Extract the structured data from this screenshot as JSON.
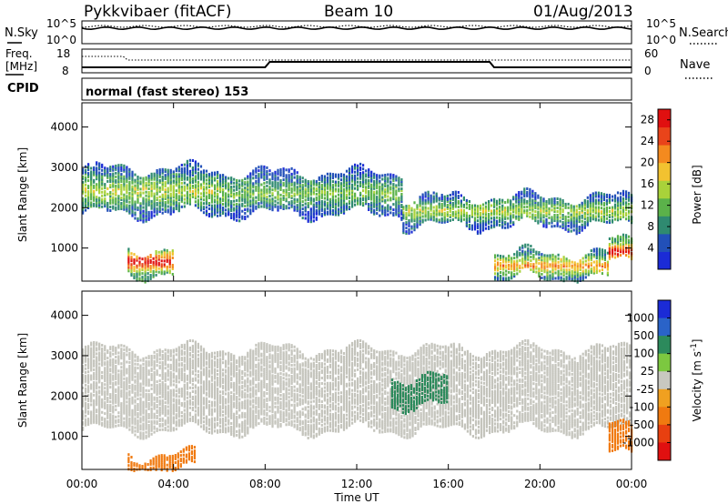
{
  "header": {
    "station": "Pykkvibaer (fitACF)",
    "beam": "Beam 10",
    "date": "01/Aug/2013"
  },
  "strip_nsky": {
    "label": "N.Sky",
    "ticks": [
      "10^5",
      "10^0"
    ],
    "right_label": "N.Search",
    "right_ticks": [
      "10^5",
      "10^0"
    ]
  },
  "strip_freq": {
    "label": "Freq.",
    "unit": "[MHz]",
    "ticks": [
      "18",
      "8"
    ],
    "right_label": "Nave",
    "right_ticks": [
      "60",
      "0"
    ]
  },
  "cpid": {
    "label": "CPID",
    "value": "normal (fast stereo) 153"
  },
  "time_axis": {
    "ticks": [
      "00:00",
      "04:00",
      "08:00",
      "12:00",
      "16:00",
      "20:00",
      "00:00"
    ],
    "label": "Time UT"
  },
  "colors": {
    "power_scale": [
      "#1b2bd6",
      "#2250b8",
      "#2f8a70",
      "#5bb24a",
      "#a9d23a",
      "#f2c230",
      "#f48a1f",
      "#e9441a",
      "#e01010"
    ],
    "velocity_scale": [
      "#1b2bd6",
      "#2a63c8",
      "#2c8a5c",
      "#7cc840",
      "#c8c8c0",
      "#f0a020",
      "#f07a10",
      "#e84010",
      "#e01010"
    ],
    "ground_scatter": "#c4c4bc"
  },
  "chart_data": [
    {
      "type": "heatmap",
      "name": "power",
      "xlabel": "Time UT",
      "ylabel": "Slant Range [km]",
      "x_ticks": [
        "00:00",
        "04:00",
        "08:00",
        "12:00",
        "16:00",
        "20:00",
        "00:00"
      ],
      "xlim_hours": [
        0,
        24
      ],
      "ylim": [
        180,
        4600
      ],
      "y_ticks": [
        1000,
        2000,
        3000,
        4000
      ],
      "colorbar_label": "Power [dB]",
      "colorbar_ticks": [
        4,
        8,
        12,
        16,
        20,
        24,
        28
      ],
      "colorbar_range": [
        0,
        30
      ],
      "features": [
        {
          "t_start": 0,
          "t_end": 6,
          "range_km": [
            1900,
            3000
          ],
          "value_db": 14
        },
        {
          "t_start": 6,
          "t_end": 14,
          "range_km": [
            1900,
            2900
          ],
          "value_db": 12
        },
        {
          "t_start": 14,
          "t_end": 24,
          "range_km": [
            1600,
            2300
          ],
          "value_db": 14
        },
        {
          "t_start": 2,
          "t_end": 4,
          "range_km": [
            400,
            1000
          ],
          "value_db": 28
        },
        {
          "t_start": 18,
          "t_end": 23,
          "range_km": [
            300,
            900
          ],
          "value_db": 20
        },
        {
          "t_start": 23,
          "t_end": 24,
          "range_km": [
            700,
            1200
          ],
          "value_db": 28
        }
      ]
    },
    {
      "type": "heatmap",
      "name": "velocity",
      "xlabel": "Time UT",
      "ylabel": "Slant Range [km]",
      "x_ticks": [
        "00:00",
        "04:00",
        "08:00",
        "12:00",
        "16:00",
        "20:00",
        "00:00"
      ],
      "xlim_hours": [
        0,
        24
      ],
      "ylim": [
        180,
        4600
      ],
      "y_ticks": [
        1000,
        2000,
        3000,
        4000
      ],
      "colorbar_label": "Velocity [m s",
      "colorbar_label_exp": "-1",
      "colorbar_label_end": "]",
      "colorbar_ticks": [
        1000,
        500,
        100,
        25,
        -25,
        -100,
        -500,
        -1000
      ],
      "features": [
        {
          "t_start": 0,
          "t_end": 24,
          "range_km": [
            1200,
            3200
          ],
          "value": "ground scatter"
        },
        {
          "t_start": 13.5,
          "t_end": 16,
          "range_km": [
            1800,
            2500
          ],
          "value_ms": 150
        },
        {
          "t_start": 2,
          "t_end": 5,
          "range_km": [
            200,
            600
          ],
          "value_ms": -300
        },
        {
          "t_start": 23,
          "t_end": 24,
          "range_km": [
            600,
            1300
          ],
          "value_ms": -400
        }
      ]
    }
  ]
}
